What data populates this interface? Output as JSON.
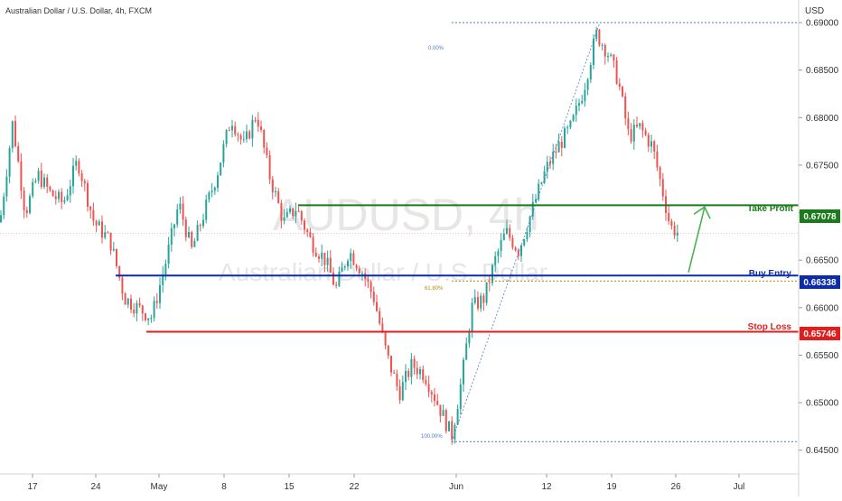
{
  "header": {
    "symbol_title": "Australian Dollar / U.S. Dollar, 4h, FXCM",
    "currency": "USD"
  },
  "watermark": {
    "symbol": "AUDUSD, 4h",
    "description": "Australian Dollar / U.S. Dollar"
  },
  "colors": {
    "up": "#26a69a",
    "down": "#ef5350",
    "take_profit": "#1b7a1b",
    "buy_entry": "#0d2ca8",
    "stop_loss": "#e01e1e",
    "fib_line": "#4a7bd0",
    "fib_618": "#b58d00",
    "arrow": "#4caf50",
    "axis_text": "#333333",
    "watermark": "#e6e6e6"
  },
  "levels": {
    "take_profit": {
      "label": "Take Profit",
      "value": "0.67078"
    },
    "buy_entry": {
      "label": "Buy Entry",
      "value": "0.66338"
    },
    "stop_loss": {
      "label": "Stop Loss",
      "value": "0.65746"
    }
  },
  "fib": {
    "top_label": "0.00%",
    "mid_label": "61.80%",
    "bottom_label": "100.00%"
  },
  "chart_data": {
    "type": "candlestick",
    "symbol": "AUDUSD",
    "timeframe": "4h",
    "ylim": [
      0.6425,
      0.692
    ],
    "y_ticks": [
      "0.69000",
      "0.68500",
      "0.68000",
      "0.67500",
      "0.67000",
      "0.66500",
      "0.66000",
      "0.65500",
      "0.65000",
      "0.64500"
    ],
    "x_ticks": [
      "17",
      "24",
      "May",
      "8",
      "15",
      "22",
      "Jun",
      "12",
      "19",
      "26",
      "Jul"
    ],
    "annotations": {
      "take_profit": 0.67078,
      "buy_entry": 0.66338,
      "stop_loss": 0.65746,
      "fib_0": 0.69,
      "fib_618": 0.6628,
      "fib_100": 0.6459,
      "current_price": 0.6678
    },
    "price_path": [
      [
        0,
        0.669
      ],
      [
        14,
        0.6795
      ],
      [
        28,
        0.67
      ],
      [
        42,
        0.674
      ],
      [
        56,
        0.672
      ],
      [
        70,
        0.671
      ],
      [
        86,
        0.6755
      ],
      [
        104,
        0.669
      ],
      [
        122,
        0.667
      ],
      [
        138,
        0.661
      ],
      [
        152,
        0.66
      ],
      [
        168,
        0.659
      ],
      [
        184,
        0.665
      ],
      [
        198,
        0.671
      ],
      [
        212,
        0.666
      ],
      [
        226,
        0.67
      ],
      [
        240,
        0.674
      ],
      [
        256,
        0.68
      ],
      [
        270,
        0.677
      ],
      [
        284,
        0.6805
      ],
      [
        298,
        0.674
      ],
      [
        314,
        0.669
      ],
      [
        328,
        0.6705
      ],
      [
        344,
        0.667
      ],
      [
        360,
        0.665
      ],
      [
        372,
        0.662
      ],
      [
        386,
        0.666
      ],
      [
        400,
        0.664
      ],
      [
        414,
        0.661
      ],
      [
        428,
        0.655
      ],
      [
        442,
        0.651
      ],
      [
        456,
        0.654
      ],
      [
        470,
        0.653
      ],
      [
        484,
        0.65
      ],
      [
        500,
        0.6465
      ],
      [
        512,
        0.653
      ],
      [
        522,
        0.66
      ],
      [
        536,
        0.661
      ],
      [
        548,
        0.665
      ],
      [
        560,
        0.668
      ],
      [
        574,
        0.666
      ],
      [
        588,
        0.67
      ],
      [
        604,
        0.6745
      ],
      [
        618,
        0.677
      ],
      [
        632,
        0.679
      ],
      [
        646,
        0.683
      ],
      [
        660,
        0.6888
      ],
      [
        672,
        0.687
      ],
      [
        684,
        0.684
      ],
      [
        696,
        0.678
      ],
      [
        708,
        0.679
      ],
      [
        722,
        0.677
      ],
      [
        734,
        0.672
      ],
      [
        742,
        0.6685
      ],
      [
        752,
        0.6678
      ]
    ]
  }
}
